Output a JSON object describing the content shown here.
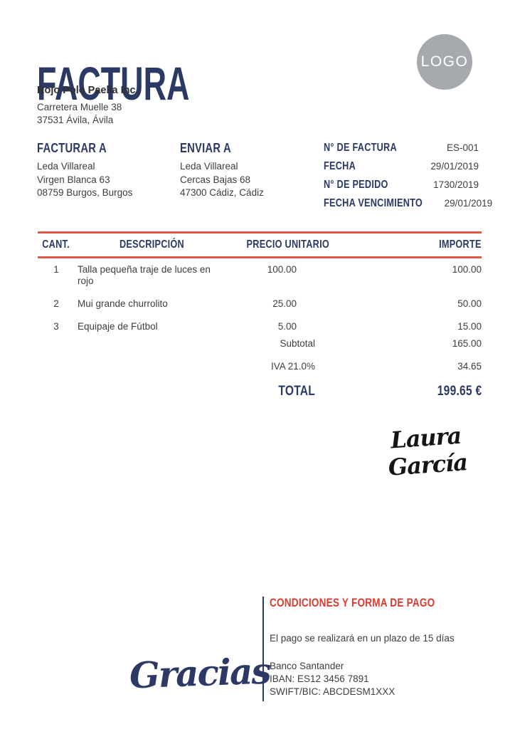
{
  "header": {
    "title": "FACTURA",
    "logo_text": "LOGO"
  },
  "company": {
    "name": "Rojo Polo Paella Inc.",
    "address_lines": [
      "Carretera Muelle 38",
      "37531 Ávila, Ávila"
    ]
  },
  "bill_to": {
    "label": "FACTURAR A",
    "lines": [
      "Leda Villareal",
      "Virgen Blanca 63",
      "08759 Burgos, Burgos"
    ]
  },
  "ship_to": {
    "label": "ENVIAR A",
    "lines": [
      "Leda Villareal",
      "Cercas Bajas 68",
      "47300 Cádiz, Cádiz"
    ]
  },
  "meta": {
    "rows": [
      {
        "label": "N° DE FACTURA",
        "value": "ES-001"
      },
      {
        "label": "FECHA",
        "value": "29/01/2019"
      },
      {
        "label": "N° DE PEDIDO",
        "value": "1730/2019"
      },
      {
        "label": "FECHA VENCIMIENTO",
        "value": "29/01/2019"
      }
    ]
  },
  "items_table": {
    "headers": {
      "qty": "CANT.",
      "description": "DESCRIPCIÓN",
      "unit_price": "PRECIO UNITARIO",
      "amount": "IMPORTE"
    },
    "rows": [
      {
        "qty": "1",
        "description": "Talla pequeña traje de luces en rojo",
        "unit_price": "100.00",
        "amount": "100.00"
      },
      {
        "qty": "2",
        "description": "Mui grande churrolito",
        "unit_price": "25.00",
        "amount": "50.00"
      },
      {
        "qty": "3",
        "description": "Equipaje de Fútbol",
        "unit_price": "5.00",
        "amount": "15.00"
      }
    ],
    "totals": [
      {
        "label": "Subtotal",
        "value": "165.00"
      },
      {
        "label": "IVA 21.0%",
        "value": "34.65"
      },
      {
        "label": "TOTAL",
        "value": "199.65 €"
      }
    ]
  },
  "signature": {
    "name": "Laura García"
  },
  "footer": {
    "thanks": "Gracias",
    "payment_title": "CONDICIONES Y FORMA DE PAGO",
    "payment_term": "El pago se realizará en un plazo de 15 días",
    "bank_lines": [
      "Banco Santander",
      "IBAN: ES12 3456 7891",
      "SWIFT/BIC: ABCDESM1XXX"
    ]
  },
  "colors": {
    "navy": "#2c3964",
    "red_text": "#d93b30",
    "red_line": "#e25743",
    "logo_gray": "#a6a9ae",
    "body_text": "#3d3d3d"
  }
}
